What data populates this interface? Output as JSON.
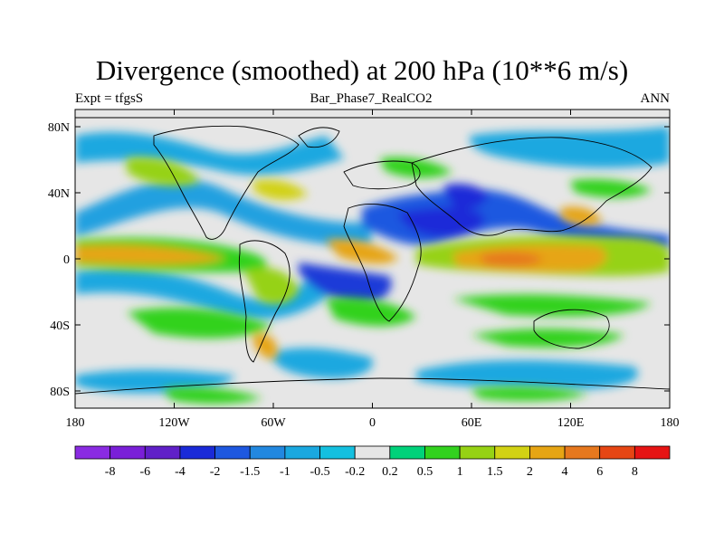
{
  "title": "Divergence (smoothed) at 200 hPa (10**6 m/s)",
  "subtitle_left": "Expt = tfgsS",
  "subtitle_center": "Bar_Phase7_RealCO2",
  "subtitle_right": "ANN",
  "lat_labels": [
    "80N",
    "40N",
    "0",
    "40S",
    "80S"
  ],
  "lon_labels": [
    "180",
    "120W",
    "60W",
    "0",
    "60E",
    "120E",
    "180"
  ],
  "colorbar": {
    "labels": [
      "-8",
      "-6",
      "-4",
      "-2",
      "-1.5",
      "-1",
      "-0.5",
      "-0.2",
      "0.2",
      "0.5",
      "1",
      "1.5",
      "2",
      "4",
      "6",
      "8"
    ],
    "colors": [
      "#8a2be2",
      "#7a1fd8",
      "#6020c8",
      "#1a2ad8",
      "#1e58e0",
      "#2288e0",
      "#1aa8e0",
      "#14c0e0",
      "#e6e6e6",
      "#00d27a",
      "#32d21e",
      "#96d214",
      "#d2d214",
      "#e6a514",
      "#e6781e",
      "#e64614",
      "#e61414"
    ]
  },
  "colors": {
    "land_outline": "#000000",
    "background": "#e6e6e6"
  }
}
